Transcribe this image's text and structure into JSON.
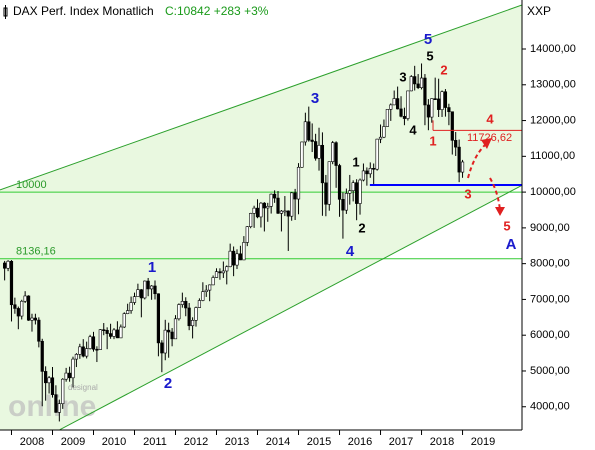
{
  "chart_data": {
    "type": "candlestick",
    "title": "DAX Perf. Index Monatlich",
    "subtitle": "C:10842 +283 +3%",
    "symbol": "XXP",
    "watermark": "online",
    "watermark_small": "designal",
    "up_color": "#ffffff",
    "down_color": "#000000",
    "outline_color": "#000000",
    "xlim": [
      2007.72,
      2020.45
    ],
    "ylim": [
      3350,
      15370
    ],
    "xticks": [
      2008,
      2009,
      2010,
      2011,
      2012,
      2013,
      2014,
      2015,
      2016,
      2017,
      2018,
      2019
    ],
    "yticks": [
      {
        "value": 4000,
        "label": "4000,00"
      },
      {
        "value": 5000,
        "label": "5000,00"
      },
      {
        "value": 6000,
        "label": "6000,00"
      },
      {
        "value": 7000,
        "label": "7000,00"
      },
      {
        "value": 8000,
        "label": "8000,00"
      },
      {
        "value": 9000,
        "label": "9000,00"
      },
      {
        "value": 10000,
        "label": "10000,00"
      },
      {
        "value": 11000,
        "label": "11000,00"
      },
      {
        "value": 12000,
        "label": "12000,00"
      },
      {
        "value": 13000,
        "label": "13000,00"
      },
      {
        "value": 14000,
        "label": "14000,00"
      }
    ],
    "x": [
      2007.833,
      2007.917,
      2008.0,
      2008.083,
      2008.167,
      2008.25,
      2008.333,
      2008.417,
      2008.5,
      2008.583,
      2008.667,
      2008.75,
      2008.833,
      2008.917,
      2009.0,
      2009.083,
      2009.167,
      2009.25,
      2009.333,
      2009.417,
      2009.5,
      2009.583,
      2009.667,
      2009.75,
      2009.833,
      2009.917,
      2010.0,
      2010.083,
      2010.167,
      2010.25,
      2010.333,
      2010.417,
      2010.5,
      2010.583,
      2010.667,
      2010.75,
      2010.833,
      2010.917,
      2011.0,
      2011.083,
      2011.167,
      2011.25,
      2011.333,
      2011.417,
      2011.5,
      2011.583,
      2011.667,
      2011.75,
      2011.833,
      2011.917,
      2012.0,
      2012.083,
      2012.167,
      2012.25,
      2012.333,
      2012.417,
      2012.5,
      2012.583,
      2012.667,
      2012.75,
      2012.833,
      2012.917,
      2013.0,
      2013.083,
      2013.167,
      2013.25,
      2013.333,
      2013.417,
      2013.5,
      2013.583,
      2013.667,
      2013.75,
      2013.833,
      2013.917,
      2014.0,
      2014.083,
      2014.167,
      2014.25,
      2014.333,
      2014.417,
      2014.5,
      2014.583,
      2014.667,
      2014.75,
      2014.833,
      2014.917,
      2015.0,
      2015.083,
      2015.167,
      2015.25,
      2015.333,
      2015.417,
      2015.5,
      2015.583,
      2015.667,
      2015.75,
      2015.833,
      2015.917,
      2016.0,
      2016.083,
      2016.167,
      2016.25,
      2016.333,
      2016.417,
      2016.5,
      2016.583,
      2016.667,
      2016.75,
      2016.833,
      2016.917,
      2017.0,
      2017.083,
      2017.167,
      2017.25,
      2017.333,
      2017.417,
      2017.5,
      2017.583,
      2017.667,
      2017.75,
      2017.833,
      2017.917,
      2018.0,
      2018.083,
      2018.167,
      2018.25,
      2018.333,
      2018.417,
      2018.5,
      2018.583,
      2018.667,
      2018.75,
      2018.833,
      2018.917,
      2019.0
    ],
    "ohlc": [
      [
        8019,
        8076,
        7532,
        7871
      ],
      [
        7871,
        8100,
        7790,
        8067
      ],
      [
        8067,
        8100,
        6384,
        6851
      ],
      [
        6851,
        7050,
        6600,
        6748
      ],
      [
        6748,
        6800,
        6167,
        6535
      ],
      [
        6535,
        6990,
        6440,
        6949
      ],
      [
        6949,
        7231,
        6900,
        7097
      ],
      [
        7097,
        7117,
        6400,
        6418
      ],
      [
        6418,
        6600,
        6100,
        6480
      ],
      [
        6480,
        6600,
        6300,
        6422
      ],
      [
        6422,
        6500,
        5660,
        5831
      ],
      [
        5831,
        5900,
        4014,
        4988
      ],
      [
        4988,
        5130,
        4170,
        4669
      ],
      [
        4669,
        4860,
        4370,
        4810
      ],
      [
        4810,
        5111,
        4256,
        4338
      ],
      [
        4338,
        4600,
        3830,
        3843
      ],
      [
        3843,
        4200,
        3589,
        4085
      ],
      [
        4085,
        4800,
        3940,
        4770
      ],
      [
        4770,
        5086,
        4700,
        4941
      ],
      [
        4941,
        5120,
        4700,
        4809
      ],
      [
        4809,
        5400,
        4540,
        5332
      ],
      [
        5332,
        5500,
        5110,
        5465
      ],
      [
        5465,
        5760,
        5340,
        5675
      ],
      [
        5675,
        5890,
        5380,
        5415
      ],
      [
        5415,
        5820,
        5350,
        5625
      ],
      [
        5625,
        6011,
        5600,
        5957
      ],
      [
        5957,
        6094,
        5540,
        5608
      ],
      [
        5608,
        5690,
        5250,
        5598
      ],
      [
        5598,
        6170,
        5590,
        6154
      ],
      [
        6154,
        6340,
        6000,
        6136
      ],
      [
        6136,
        6220,
        5610,
        6046
      ],
      [
        6046,
        6320,
        5900,
        5966
      ],
      [
        5966,
        6200,
        5890,
        6148
      ],
      [
        6148,
        6390,
        5920,
        5925
      ],
      [
        5925,
        6300,
        5920,
        6229
      ],
      [
        6229,
        6640,
        6200,
        6601
      ],
      [
        6601,
        6880,
        6590,
        6688
      ],
      [
        6688,
        7080,
        6600,
        6914
      ],
      [
        6914,
        7190,
        6850,
        7077
      ],
      [
        7077,
        7440,
        7070,
        7273
      ],
      [
        7273,
        7290,
        6500,
        7041
      ],
      [
        7041,
        7530,
        7000,
        7514
      ],
      [
        7514,
        7600,
        7090,
        7294
      ],
      [
        7294,
        7400,
        6990,
        7376
      ],
      [
        7376,
        7530,
        7000,
        7159
      ],
      [
        7159,
        7170,
        5410,
        5785
      ],
      [
        5785,
        5860,
        4966,
        5502
      ],
      [
        5502,
        6430,
        5300,
        6141
      ],
      [
        6141,
        6350,
        5370,
        6089
      ],
      [
        6089,
        6200,
        5690,
        5898
      ],
      [
        5898,
        6560,
        5900,
        6458
      ],
      [
        6458,
        6890,
        6410,
        6856
      ],
      [
        6856,
        7190,
        6770,
        6947
      ],
      [
        6947,
        7060,
        6530,
        6761
      ],
      [
        6761,
        6900,
        6140,
        6264
      ],
      [
        6264,
        6500,
        5910,
        6416
      ],
      [
        6416,
        6800,
        6240,
        6772
      ],
      [
        6772,
        7030,
        6760,
        6970
      ],
      [
        6970,
        7480,
        6950,
        7216
      ],
      [
        7216,
        7400,
        7070,
        7260
      ],
      [
        7260,
        7420,
        6950,
        7406
      ],
      [
        7406,
        7670,
        7400,
        7612
      ],
      [
        7612,
        7870,
        7600,
        7776
      ],
      [
        7776,
        7870,
        7550,
        7742
      ],
      [
        7742,
        8060,
        7600,
        7795
      ],
      [
        7795,
        7950,
        7420,
        7914
      ],
      [
        7914,
        8560,
        7900,
        8349
      ],
      [
        8349,
        8480,
        7650,
        7959
      ],
      [
        7959,
        8400,
        7850,
        8276
      ],
      [
        8276,
        8500,
        8100,
        8104
      ],
      [
        8104,
        8770,
        8100,
        8594
      ],
      [
        8594,
        9050,
        8490,
        9033
      ],
      [
        9033,
        9420,
        8990,
        9406
      ],
      [
        9406,
        9620,
        9000,
        9552
      ],
      [
        9552,
        9800,
        9270,
        9306
      ],
      [
        9306,
        9720,
        9010,
        9692
      ],
      [
        9692,
        9720,
        8900,
        9556
      ],
      [
        9556,
        9700,
        9170,
        9603
      ],
      [
        9603,
        9960,
        9400,
        9943
      ],
      [
        9943,
        10050,
        9700,
        9833
      ],
      [
        9833,
        10030,
        9390,
        9407
      ],
      [
        9407,
        9500,
        8900,
        9470
      ],
      [
        9470,
        9890,
        9330,
        9474
      ],
      [
        9474,
        9490,
        8355,
        9327
      ],
      [
        9327,
        10000,
        9200,
        9980
      ],
      [
        9980,
        10090,
        9220,
        9806
      ],
      [
        9806,
        10810,
        9380,
        10694
      ],
      [
        10694,
        11410,
        10680,
        11402
      ],
      [
        11402,
        12220,
        11300,
        11966
      ],
      [
        11966,
        12390,
        11410,
        11454
      ],
      [
        11454,
        11920,
        11120,
        11414
      ],
      [
        11414,
        11630,
        10880,
        10945
      ],
      [
        10945,
        11800,
        10600,
        11309
      ],
      [
        11309,
        11670,
        9338,
        10259
      ],
      [
        10259,
        10480,
        9325,
        9660
      ],
      [
        9660,
        10850,
        9480,
        10850
      ],
      [
        10850,
        11430,
        10780,
        11382
      ],
      [
        11382,
        11420,
        10120,
        10743
      ],
      [
        10743,
        10790,
        9310,
        9798
      ],
      [
        9798,
        9990,
        8699,
        9495
      ],
      [
        9495,
        10100,
        9390,
        9966
      ],
      [
        9966,
        10480,
        9650,
        10039
      ],
      [
        10039,
        10330,
        9740,
        10263
      ],
      [
        10263,
        10360,
        9214,
        9680
      ],
      [
        9680,
        10380,
        9370,
        10337
      ],
      [
        10337,
        10800,
        10300,
        10593
      ],
      [
        10593,
        10690,
        10180,
        10511
      ],
      [
        10511,
        10830,
        10400,
        10665
      ],
      [
        10665,
        10800,
        10170,
        10640
      ],
      [
        10640,
        11490,
        10600,
        11481
      ],
      [
        11481,
        11890,
        11370,
        11535
      ],
      [
        11535,
        12030,
        11510,
        11834
      ],
      [
        11834,
        12320,
        11830,
        12313
      ],
      [
        12313,
        12480,
        11990,
        12438
      ],
      [
        12438,
        12840,
        12430,
        12615
      ],
      [
        12615,
        12950,
        12310,
        12325
      ],
      [
        12325,
        12680,
        12090,
        12118
      ],
      [
        12118,
        12360,
        11870,
        12056
      ],
      [
        12056,
        12830,
        12000,
        12829
      ],
      [
        12829,
        13270,
        12820,
        13230
      ],
      [
        13230,
        13530,
        12840,
        13024
      ],
      [
        13024,
        13300,
        12880,
        12918
      ],
      [
        12918,
        13596,
        12870,
        13189
      ],
      [
        13189,
        13300,
        11870,
        12436
      ],
      [
        12436,
        12600,
        11730,
        12097
      ],
      [
        12097,
        12620,
        11940,
        12612
      ],
      [
        12612,
        13200,
        12580,
        12605
      ],
      [
        12605,
        13170,
        12100,
        12306
      ],
      [
        12306,
        12840,
        12100,
        12806
      ],
      [
        12806,
        12880,
        12110,
        12364
      ],
      [
        12364,
        12470,
        11870,
        12247
      ],
      [
        12247,
        12250,
        11050,
        11447
      ],
      [
        11447,
        11680,
        11010,
        11257
      ],
      [
        11257,
        11470,
        10279,
        10559
      ],
      [
        10559,
        10900,
        10400,
        10842
      ]
    ],
    "channel_color": "#2ca02c",
    "channel_fill": "#e9f8e0",
    "channel_upper": {
      "x": [
        2007.72,
        2020.45
      ],
      "y": [
        10063,
        15230
      ]
    },
    "channel_lower": {
      "x": [
        2009.18,
        2020.45
      ],
      "y": [
        3360,
        10189
      ]
    },
    "hlines": [
      {
        "value": 10000,
        "label": "10000",
        "color": "#33cc33"
      },
      {
        "value": 8136.16,
        "label": "8136,16",
        "color": "#33cc33"
      }
    ],
    "support": {
      "value": 10200,
      "x": [
        2016.74,
        2020.45
      ],
      "color": "#0000ff"
    },
    "resistance": {
      "value": 11726.62,
      "label": "11726,62",
      "x": [
        2018.28,
        2020.45
      ],
      "color": "#e02020"
    },
    "annotations": [
      {
        "text": "5",
        "color": "#1a1acc"
      },
      {
        "text": "5",
        "color": "#000000"
      },
      {
        "text": "3",
        "color": "#000000"
      },
      {
        "text": "2",
        "color": "#e02020"
      },
      {
        "text": "4",
        "color": "#000000"
      },
      {
        "text": "1",
        "color": "#e02020"
      },
      {
        "text": "3",
        "color": "#1a1acc"
      },
      {
        "text": "1",
        "color": "#000000"
      },
      {
        "text": "2",
        "color": "#000000"
      },
      {
        "text": "4",
        "color": "#1a1acc"
      },
      {
        "text": "1",
        "color": "#1a1acc"
      },
      {
        "text": "2",
        "color": "#1a1acc"
      },
      {
        "text": "4",
        "color": "#e02020"
      },
      {
        "text": "3",
        "color": "#e02020"
      },
      {
        "text": "5",
        "color": "#e02020"
      },
      {
        "text": "A",
        "color": "#1a1acc"
      }
    ]
  }
}
